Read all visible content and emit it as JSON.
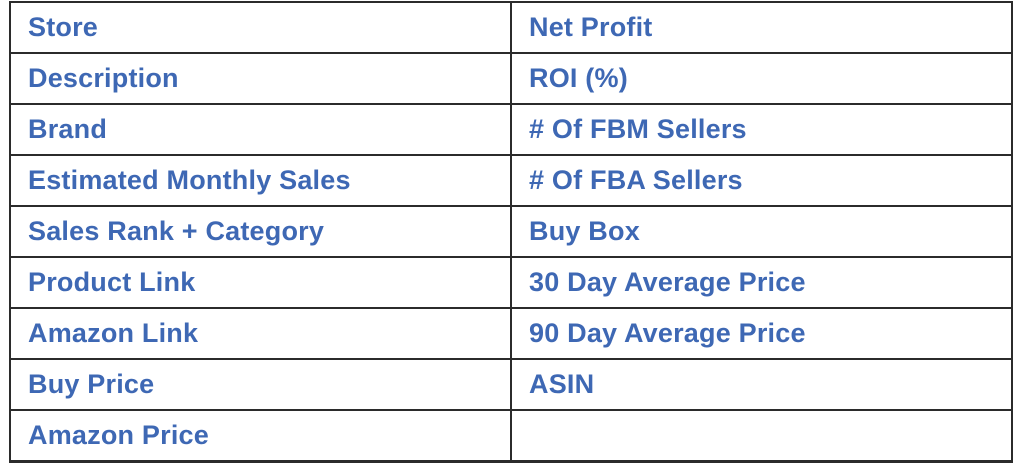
{
  "colors": {
    "label_text": "#3e68b4",
    "border": "#2b2b2b",
    "background": "#ffffff"
  },
  "table": {
    "rows": [
      {
        "left": "Store",
        "right": "Net Profit"
      },
      {
        "left": "Description",
        "right": "ROI (%)"
      },
      {
        "left": "Brand",
        "right": "# Of FBM Sellers"
      },
      {
        "left": "Estimated Monthly Sales",
        "right": "# Of FBA Sellers"
      },
      {
        "left": "Sales Rank + Category",
        "right": "Buy Box"
      },
      {
        "left": "Product Link",
        "right": "30 Day Average Price"
      },
      {
        "left": "Amazon Link",
        "right": "90 Day Average Price"
      },
      {
        "left": "Buy Price",
        "right": "ASIN"
      },
      {
        "left": "Amazon Price",
        "right": ""
      }
    ]
  }
}
